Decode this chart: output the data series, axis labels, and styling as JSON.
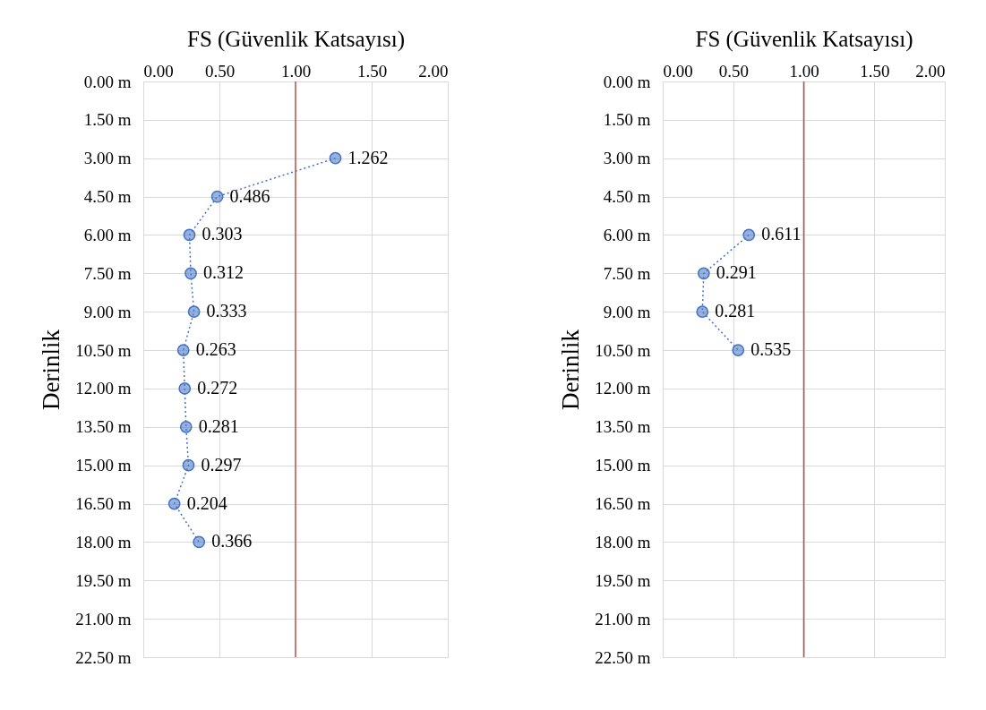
{
  "chart_data": [
    {
      "type": "line",
      "orientation": "horizontal",
      "xlabel": "FS (Güvenlik Katsayısı)",
      "ylabel": "Derinlik",
      "categories": [
        "0.00 m",
        "1.50 m",
        "3.00 m",
        "4.50 m",
        "6.00 m",
        "7.50 m",
        "9.00 m",
        "10.50 m",
        "12.00 m",
        "13.50 m",
        "15.00 m",
        "16.50 m",
        "18.00 m",
        "19.50 m",
        "21.00 m",
        "22.50 m"
      ],
      "series": [
        {
          "color": "#4472c4",
          "values": [
            null,
            null,
            1.262,
            0.486,
            0.303,
            0.312,
            0.333,
            0.263,
            0.272,
            0.281,
            0.297,
            0.204,
            0.366,
            null,
            null,
            null
          ]
        }
      ],
      "xlim": [
        0,
        2
      ],
      "xticks": [
        {
          "value": 0,
          "label": "0.00"
        },
        {
          "value": 0.5,
          "label": "0.50"
        },
        {
          "value": 1,
          "label": "1.00"
        },
        {
          "value": 1.5,
          "label": "1.50"
        },
        {
          "value": 2,
          "label": "2.00"
        }
      ],
      "ref_lines": [
        {
          "axis": "x",
          "value": 1,
          "color": "#c0504d"
        }
      ],
      "grid": true,
      "marker": "circle",
      "line_style": "dotted",
      "data_labels": true
    },
    {
      "type": "line",
      "orientation": "horizontal",
      "xlabel": "FS (Güvenlik Katsayısı)",
      "ylabel": "Derinlik",
      "categories": [
        "0.00 m",
        "1.50 m",
        "3.00 m",
        "4.50 m",
        "6.00 m",
        "7.50 m",
        "9.00 m",
        "10.50 m",
        "12.00 m",
        "13.50 m",
        "15.00 m",
        "16.50 m",
        "18.00 m",
        "19.50 m",
        "21.00 m",
        "22.50 m"
      ],
      "series": [
        {
          "color": "#4472c4",
          "values": [
            null,
            null,
            null,
            null,
            0.611,
            0.291,
            0.281,
            0.535,
            null,
            null,
            null,
            null,
            null,
            null,
            null,
            null
          ]
        }
      ],
      "xlim": [
        0,
        2
      ],
      "xticks": [
        {
          "value": 0,
          "label": "0.00"
        },
        {
          "value": 0.5,
          "label": "0.50"
        },
        {
          "value": 1,
          "label": "1.00"
        },
        {
          "value": 1.5,
          "label": "1.50"
        },
        {
          "value": 2,
          "label": "2.00"
        }
      ],
      "ref_lines": [
        {
          "axis": "x",
          "value": 1,
          "color": "#c0504d"
        }
      ],
      "grid": true,
      "marker": "circle",
      "line_style": "dotted",
      "data_labels": true
    }
  ]
}
